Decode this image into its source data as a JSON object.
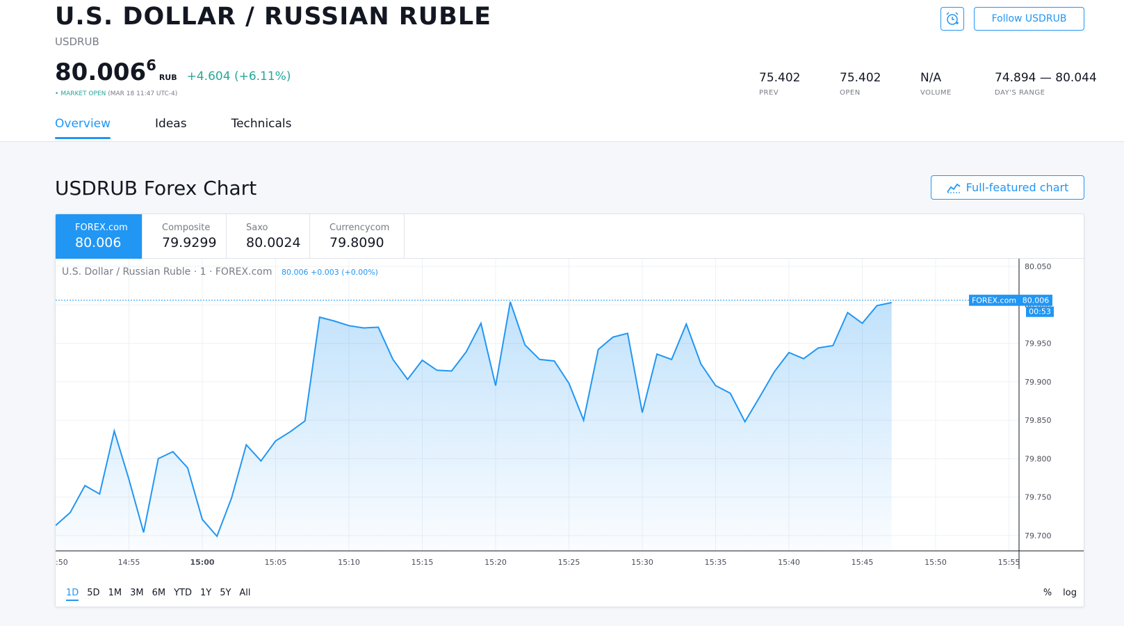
{
  "header": {
    "title": "U.S. DOLLAR / RUSSIAN RUBLE",
    "ticker": "USDRUB",
    "price_main": "80.006",
    "price_sup": "6",
    "price_currency": "RUB",
    "price_change": "+4.604 (+6.11%)",
    "status_label": "MARKET OPEN",
    "status_time": "(MAR 18 11:47 UTC-4)",
    "follow_label": "Follow USDRUB",
    "stats": [
      {
        "value": "75.402",
        "label": "PREV"
      },
      {
        "value": "75.402",
        "label": "OPEN"
      },
      {
        "value": "N/A",
        "label": "VOLUME"
      },
      {
        "value": "74.894 — 80.044",
        "label": "DAY'S RANGE"
      }
    ]
  },
  "tabs": [
    "Overview",
    "Ideas",
    "Technicals"
  ],
  "section": {
    "title": "USDRUB Forex Chart",
    "full_chart_label": "Full-featured chart"
  },
  "sources": [
    {
      "name": "FOREX.com",
      "price": "80.006"
    },
    {
      "name": "Composite",
      "price": "79.9299"
    },
    {
      "name": "Saxo",
      "price": "80.0024"
    },
    {
      "name": "Currencycom",
      "price": "79.8090"
    }
  ],
  "chart_legend": {
    "name": "U.S. Dollar / Russian Ruble · 1 · FOREX.com",
    "values": "80.006 +0.003 (+0.00%)"
  },
  "price_tag": {
    "source": "FOREX.com",
    "value": "80.006",
    "countdown": "00:53"
  },
  "ranges": [
    "1D",
    "5D",
    "1M",
    "3M",
    "6M",
    "YTD",
    "1Y",
    "5Y",
    "All"
  ],
  "scale_options": [
    "%",
    "log"
  ],
  "colors": {
    "accent": "#2196f3",
    "positive": "#26a69a"
  },
  "chart_data": {
    "type": "area",
    "x": [
      "14:50",
      "14:51",
      "14:52",
      "14:53",
      "14:54",
      "14:55",
      "14:56",
      "14:57",
      "14:58",
      "14:59",
      "15:00",
      "15:01",
      "15:02",
      "15:03",
      "15:04",
      "15:05",
      "15:06",
      "15:07",
      "15:08",
      "15:09",
      "15:10",
      "15:11",
      "15:12",
      "15:13",
      "15:14",
      "15:15",
      "15:16",
      "15:17",
      "15:18",
      "15:19",
      "15:20",
      "15:21",
      "15:22",
      "15:23",
      "15:24",
      "15:25",
      "15:26",
      "15:27",
      "15:28",
      "15:29",
      "15:30",
      "15:31",
      "15:32",
      "15:33",
      "15:34",
      "15:35",
      "15:36",
      "15:37",
      "15:38",
      "15:39",
      "15:40",
      "15:41",
      "15:42",
      "15:43",
      "15:44",
      "15:45",
      "15:46",
      "15:47"
    ],
    "values": [
      79.713,
      79.73,
      79.765,
      79.754,
      79.836,
      79.773,
      79.704,
      79.8,
      79.809,
      79.788,
      79.721,
      79.699,
      79.749,
      79.818,
      79.797,
      79.823,
      79.835,
      79.849,
      79.984,
      79.979,
      79.973,
      79.97,
      79.971,
      79.929,
      79.903,
      79.928,
      79.915,
      79.914,
      79.939,
      79.976,
      79.895,
      80.004,
      79.948,
      79.929,
      79.927,
      79.898,
      79.85,
      79.942,
      79.958,
      79.963,
      79.86,
      79.936,
      79.929,
      79.975,
      79.923,
      79.895,
      79.885,
      79.848,
      79.88,
      79.913,
      79.938,
      79.93,
      79.944,
      79.947,
      79.99,
      79.976,
      79.999,
      80.003
    ],
    "x_ticks": [
      ":50",
      "14:55",
      "15:00",
      "15:05",
      "15:10",
      "15:15",
      "15:20",
      "15:25",
      "15:30",
      "15:35",
      "15:40",
      "15:45",
      "15:50",
      "15:55"
    ],
    "y_ticks": [
      "80.050",
      "80.000",
      "79.950",
      "79.900",
      "79.850",
      "79.800",
      "79.750",
      "79.700"
    ],
    "ylim": [
      79.68,
      80.06
    ],
    "last_value": 80.006,
    "grid": true
  }
}
